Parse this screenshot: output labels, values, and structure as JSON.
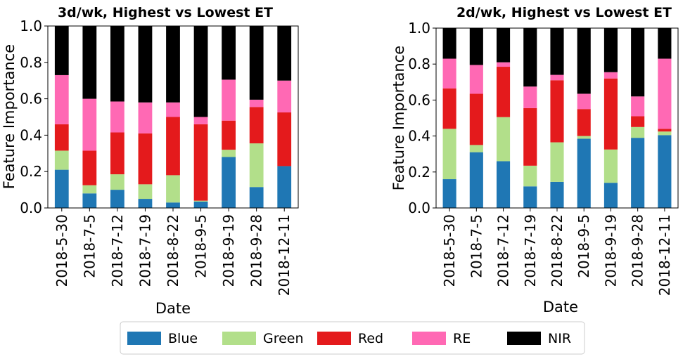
{
  "chart_data": [
    {
      "type": "bar",
      "stacked": true,
      "title": "3d/wk, Highest vs Lowest ET",
      "xlabel": "Date",
      "ylabel": "Feature Importance",
      "ylim": [
        0,
        1.0
      ],
      "yticks": [
        "0.0",
        "0.2",
        "0.4",
        "0.6",
        "0.8",
        "1.0"
      ],
      "categories": [
        "2018-5-30",
        "2018-7-5",
        "2018-7-12",
        "2018-7-19",
        "2018-8-22",
        "2018-9-5",
        "2018-9-19",
        "2018-9-28",
        "2018-12-11"
      ],
      "series": [
        {
          "name": "Blue",
          "values": [
            0.21,
            0.08,
            0.1,
            0.05,
            0.03,
            0.035,
            0.28,
            0.115,
            0.23
          ]
        },
        {
          "name": "Green",
          "values": [
            0.105,
            0.045,
            0.085,
            0.08,
            0.15,
            0.005,
            0.04,
            0.24,
            0.0
          ]
        },
        {
          "name": "Red",
          "values": [
            0.145,
            0.19,
            0.23,
            0.28,
            0.32,
            0.42,
            0.16,
            0.2,
            0.295
          ]
        },
        {
          "name": "RE",
          "values": [
            0.27,
            0.285,
            0.17,
            0.17,
            0.08,
            0.04,
            0.225,
            0.04,
            0.175
          ]
        },
        {
          "name": "NIR",
          "values": [
            0.27,
            0.4,
            0.415,
            0.42,
            0.42,
            0.5,
            0.295,
            0.405,
            0.3
          ]
        }
      ]
    },
    {
      "type": "bar",
      "stacked": true,
      "title": "2d/wk, Highest vs Lowest ET",
      "xlabel": "Date",
      "ylabel": "Feature Importance",
      "ylim": [
        0,
        1.0
      ],
      "yticks": [
        "0.0",
        "0.2",
        "0.4",
        "0.6",
        "0.8",
        "1.0"
      ],
      "categories": [
        "2018-5-30",
        "2018-7-5",
        "2018-7-12",
        "2018-7-19",
        "2018-8-22",
        "2018-9-5",
        "2018-9-19",
        "2018-9-28",
        "2018-12-11"
      ],
      "series": [
        {
          "name": "Blue",
          "values": [
            0.16,
            0.31,
            0.26,
            0.12,
            0.145,
            0.385,
            0.14,
            0.39,
            0.405
          ]
        },
        {
          "name": "Green",
          "values": [
            0.28,
            0.04,
            0.245,
            0.115,
            0.22,
            0.015,
            0.185,
            0.06,
            0.02
          ]
        },
        {
          "name": "Red",
          "values": [
            0.225,
            0.285,
            0.28,
            0.32,
            0.345,
            0.15,
            0.395,
            0.06,
            0.015
          ]
        },
        {
          "name": "RE",
          "values": [
            0.165,
            0.16,
            0.025,
            0.12,
            0.03,
            0.085,
            0.035,
            0.11,
            0.39
          ]
        },
        {
          "name": "NIR",
          "values": [
            0.17,
            0.205,
            0.19,
            0.325,
            0.26,
            0.365,
            0.245,
            0.38,
            0.17
          ]
        }
      ]
    }
  ],
  "legend": {
    "placement": "bottom-center",
    "items": [
      {
        "label": "Blue",
        "color": "#1f77b4"
      },
      {
        "label": "Green",
        "color": "#b2df8a"
      },
      {
        "label": "Red",
        "color": "#e41a1c"
      },
      {
        "label": "RE",
        "color": "#ff69b4"
      },
      {
        "label": "NIR",
        "color": "#000000"
      }
    ]
  }
}
